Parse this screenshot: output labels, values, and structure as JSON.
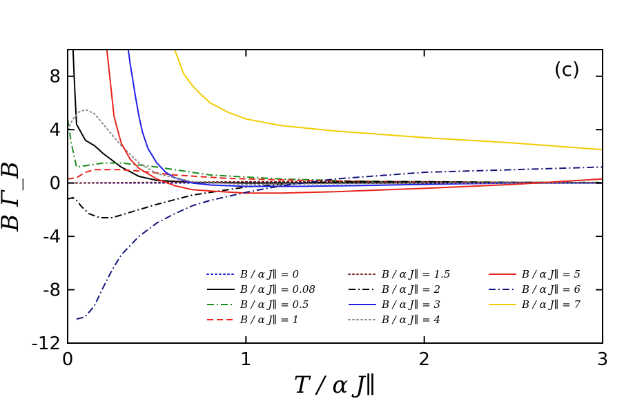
{
  "chart_data": {
    "type": "line",
    "title": "",
    "panel_label": "(c)",
    "xlabel": "T / α J∥",
    "ylabel": "B Γ_B",
    "xlim": [
      0,
      3
    ],
    "ylim": [
      -12,
      10
    ],
    "xticks": [
      0,
      1,
      2,
      3
    ],
    "xtick_labels": [
      "0",
      "1",
      "2",
      "3"
    ],
    "yticks": [
      -12,
      -8,
      -4,
      0,
      4,
      8
    ],
    "ytick_labels": [
      "-12",
      "-8",
      "-4",
      "0",
      "4",
      "8"
    ],
    "grid": false,
    "legend_position": "bottom-right",
    "series": [
      {
        "name": "B / α J∥ = 0",
        "color": "#1f1fd6",
        "dash": "dotted",
        "x": [
          0.0,
          3.0
        ],
        "y": [
          0.0,
          0.0
        ]
      },
      {
        "name": "B / α J∥ = 0.08",
        "color": "#000000",
        "dash": "solid",
        "x": [
          0.03,
          0.04,
          0.05,
          0.1,
          0.15,
          0.2,
          0.3,
          0.4,
          0.5,
          0.7,
          1.0,
          1.5,
          2.0,
          2.5,
          3.0
        ],
        "y": [
          10.0,
          7.0,
          4.4,
          3.2,
          2.8,
          2.2,
          1.2,
          0.5,
          0.2,
          0.05,
          0.0,
          0.0,
          0.0,
          0.0,
          0.0
        ]
      },
      {
        "name": "B / α J∥ = 0.5",
        "color": "#1a8a1a",
        "dash": "dashdot",
        "x": [
          0.0,
          0.02,
          0.05,
          0.1,
          0.2,
          0.3,
          0.5,
          0.8,
          1.2,
          1.6,
          2.0,
          2.5,
          3.0
        ],
        "y": [
          4.8,
          3.0,
          1.2,
          1.3,
          1.5,
          1.5,
          1.2,
          0.6,
          0.3,
          0.15,
          0.1,
          0.05,
          0.05
        ]
      },
      {
        "name": "B / α J∥ = 1",
        "color": "#e8241c",
        "dash": "dashed",
        "x": [
          0.0,
          0.05,
          0.1,
          0.15,
          0.2,
          0.3,
          0.4,
          0.6,
          0.9,
          1.3,
          1.8,
          2.4,
          3.0
        ],
        "y": [
          0.3,
          0.4,
          0.8,
          1.0,
          1.0,
          1.0,
          0.9,
          0.6,
          0.35,
          0.2,
          0.1,
          0.05,
          0.02
        ]
      },
      {
        "name": "B / α J∥ = 1.5",
        "color": "#7a1a1a",
        "dash": "dotted",
        "x": [
          0.0,
          0.5,
          1.0,
          1.5,
          2.0,
          2.5,
          3.0
        ],
        "y": [
          0.0,
          0.05,
          0.1,
          0.1,
          0.08,
          0.05,
          0.03
        ]
      },
      {
        "name": "B / α J∥ = 2",
        "color": "#000000",
        "dash": "dashdot",
        "x": [
          0.0,
          0.03,
          0.05,
          0.08,
          0.12,
          0.18,
          0.25,
          0.35,
          0.5,
          0.7,
          1.0,
          1.3,
          1.6,
          2.0,
          2.5,
          3.0
        ],
        "y": [
          -1.2,
          -1.1,
          -1.3,
          -1.8,
          -2.3,
          -2.6,
          -2.6,
          -2.2,
          -1.6,
          -0.9,
          -0.3,
          0.0,
          0.1,
          0.1,
          0.05,
          0.02
        ]
      },
      {
        "name": "B / α J∥ = 3",
        "color": "#1f1fe6",
        "dash": "solid",
        "x": [
          0.34,
          0.35,
          0.38,
          0.4,
          0.42,
          0.45,
          0.5,
          0.55,
          0.6,
          0.7,
          0.8,
          1.0,
          1.3,
          1.6,
          2.0,
          2.5,
          3.0
        ],
        "y": [
          10.0,
          9.0,
          6.5,
          5.0,
          3.8,
          2.6,
          1.5,
          0.8,
          0.4,
          0.0,
          -0.15,
          -0.25,
          -0.25,
          -0.2,
          -0.1,
          0.0,
          0.0
        ]
      },
      {
        "name": "B / α J∥ = 4",
        "color": "#8a8a8a",
        "dash": "dotted",
        "x": [
          0.0,
          0.03,
          0.06,
          0.1,
          0.15,
          0.2,
          0.3,
          0.4,
          0.5,
          0.7,
          1.0,
          1.5,
          2.0,
          2.5,
          3.0
        ],
        "y": [
          4.0,
          4.8,
          5.3,
          5.5,
          5.2,
          4.4,
          2.8,
          1.5,
          0.7,
          0.1,
          -0.1,
          -0.05,
          0.0,
          0.0,
          0.0
        ]
      },
      {
        "name": "B / α J∥ = 5",
        "color": "#e8241c",
        "dash": "solid",
        "x": [
          0.22,
          0.24,
          0.26,
          0.3,
          0.35,
          0.4,
          0.5,
          0.6,
          0.7,
          0.8,
          1.0,
          1.2,
          1.5,
          2.0,
          2.5,
          3.0
        ],
        "y": [
          10.0,
          7.5,
          5.0,
          3.0,
          1.8,
          1.1,
          0.3,
          -0.2,
          -0.5,
          -0.6,
          -0.75,
          -0.75,
          -0.65,
          -0.4,
          -0.1,
          0.3
        ]
      },
      {
        "name": "B / α J∥ = 6",
        "color": "#14147a",
        "dash": "dashdot",
        "x": [
          0.05,
          0.08,
          0.1,
          0.15,
          0.2,
          0.25,
          0.3,
          0.4,
          0.5,
          0.6,
          0.7,
          0.8,
          1.0,
          1.2,
          1.5,
          2.0,
          2.5,
          3.0
        ],
        "y": [
          -10.2,
          -10.1,
          -10.0,
          -9.2,
          -7.8,
          -6.5,
          -5.4,
          -4.0,
          -3.0,
          -2.3,
          -1.7,
          -1.3,
          -0.7,
          -0.2,
          0.3,
          0.8,
          1.0,
          1.2
        ]
      },
      {
        "name": "B / α J∥ = 7",
        "color": "#f2cc00",
        "dash": "solid",
        "x": [
          0.6,
          0.62,
          0.65,
          0.7,
          0.75,
          0.8,
          0.9,
          1.0,
          1.2,
          1.5,
          2.0,
          2.5,
          3.0
        ],
        "y": [
          10.0,
          9.3,
          8.2,
          7.3,
          6.6,
          6.0,
          5.3,
          4.8,
          4.3,
          3.9,
          3.4,
          3.0,
          2.5
        ]
      }
    ]
  }
}
